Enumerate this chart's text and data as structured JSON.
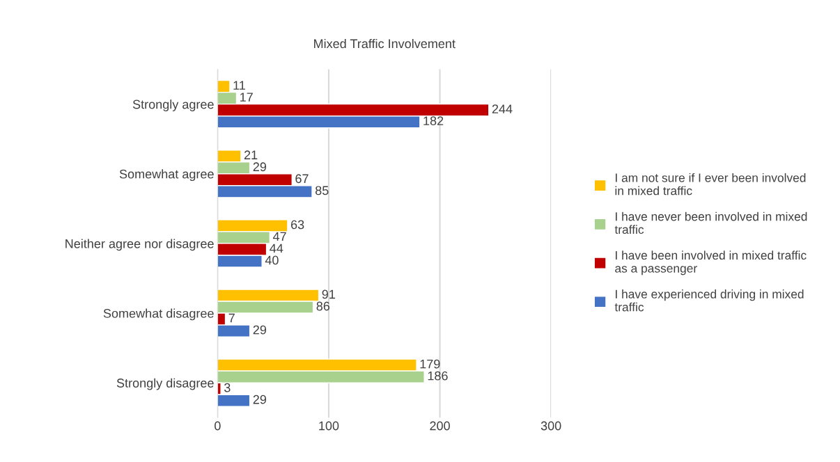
{
  "chart_data": {
    "type": "bar",
    "orientation": "horizontal",
    "title": "Mixed Traffic Involvement",
    "categories": [
      "Strongly agree",
      "Somewhat agree",
      "Neither agree nor disagree",
      "Somewhat disagree",
      "Strongly disagree"
    ],
    "series": [
      {
        "name": "I am not sure if I ever been involved in mixed traffic",
        "color": "#ffc000",
        "values": [
          11,
          21,
          63,
          91,
          179
        ]
      },
      {
        "name": "I have never been involved in mixed traffic",
        "color": "#a9d18e",
        "values": [
          17,
          29,
          47,
          86,
          186
        ]
      },
      {
        "name": "I have been involved in mixed traffic as a passenger",
        "color": "#c00000",
        "values": [
          244,
          67,
          44,
          7,
          3
        ]
      },
      {
        "name": "I have experienced driving in mixed traffic",
        "color": "#4472c4",
        "values": [
          182,
          85,
          40,
          29,
          29
        ]
      }
    ],
    "xlim": [
      0,
      300
    ],
    "xticks": [
      0,
      100,
      200,
      300
    ],
    "grid": "x",
    "legend": "right",
    "data_labels": true
  }
}
